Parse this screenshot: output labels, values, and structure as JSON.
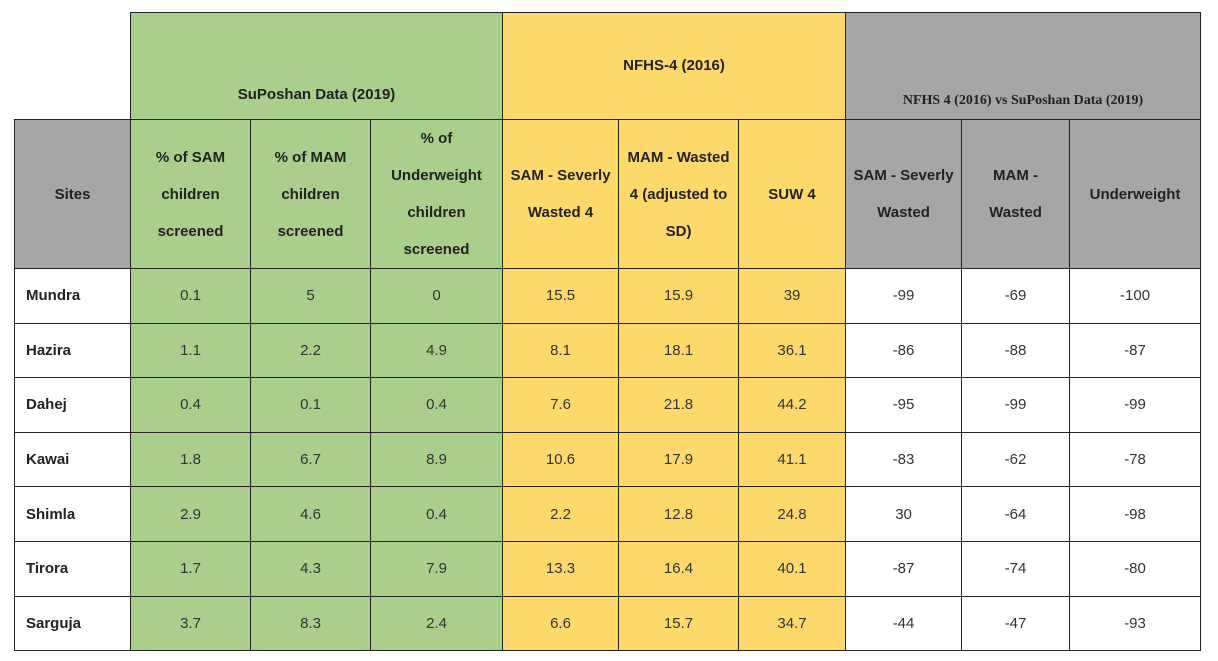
{
  "groups": {
    "suposhan": "SuPoshan Data (2019)",
    "nfhs": "NFHS-4 (2016)",
    "compare": "NFHS 4 (2016) vs SuPoshan Data (2019)"
  },
  "columns": {
    "sites": "Sites",
    "sam_pct": "% of SAM children screened",
    "mam_pct": "% of MAM children screened",
    "uw_pct": "% of Underweight children screened",
    "sam4": "SAM - Severly Wasted 4",
    "mam4": "MAM - Wasted 4 (adjusted to SD)",
    "suw4": "SUW 4",
    "sam_cmp": "SAM - Severly Wasted",
    "mam_cmp": "MAM - Wasted",
    "uw_cmp": "Underweight"
  },
  "rows": [
    {
      "site": "Mundra",
      "v": [
        "0.1",
        "5",
        "0",
        "15.5",
        "15.9",
        "39",
        "-99",
        "-69",
        "-100"
      ]
    },
    {
      "site": "Hazira",
      "v": [
        "1.1",
        "2.2",
        "4.9",
        "8.1",
        "18.1",
        "36.1",
        "-86",
        "-88",
        "-87"
      ]
    },
    {
      "site": "Dahej",
      "v": [
        "0.4",
        "0.1",
        "0.4",
        "7.6",
        "21.8",
        "44.2",
        "-95",
        "-99",
        "-99"
      ]
    },
    {
      "site": "Kawai",
      "v": [
        "1.8",
        "6.7",
        "8.9",
        "10.6",
        "17.9",
        "41.1",
        "-83",
        "-62",
        "-78"
      ]
    },
    {
      "site": "Shimla",
      "v": [
        "2.9",
        "4.6",
        "0.4",
        "2.2",
        "12.8",
        "24.8",
        "30",
        "-64",
        "-98"
      ]
    },
    {
      "site": "Tirora",
      "v": [
        "1.7",
        "4.3",
        "7.9",
        "13.3",
        "16.4",
        "40.1",
        "-87",
        "-74",
        "-80"
      ]
    },
    {
      "site": "Sarguja",
      "v": [
        "3.7",
        "8.3",
        "2.4",
        "6.6",
        "15.7",
        "34.7",
        "-44",
        "-47",
        "-93"
      ]
    }
  ],
  "colors": {
    "green": "#aace8c",
    "yellow": "#fdd96c",
    "gray": "#a6a6a6"
  }
}
